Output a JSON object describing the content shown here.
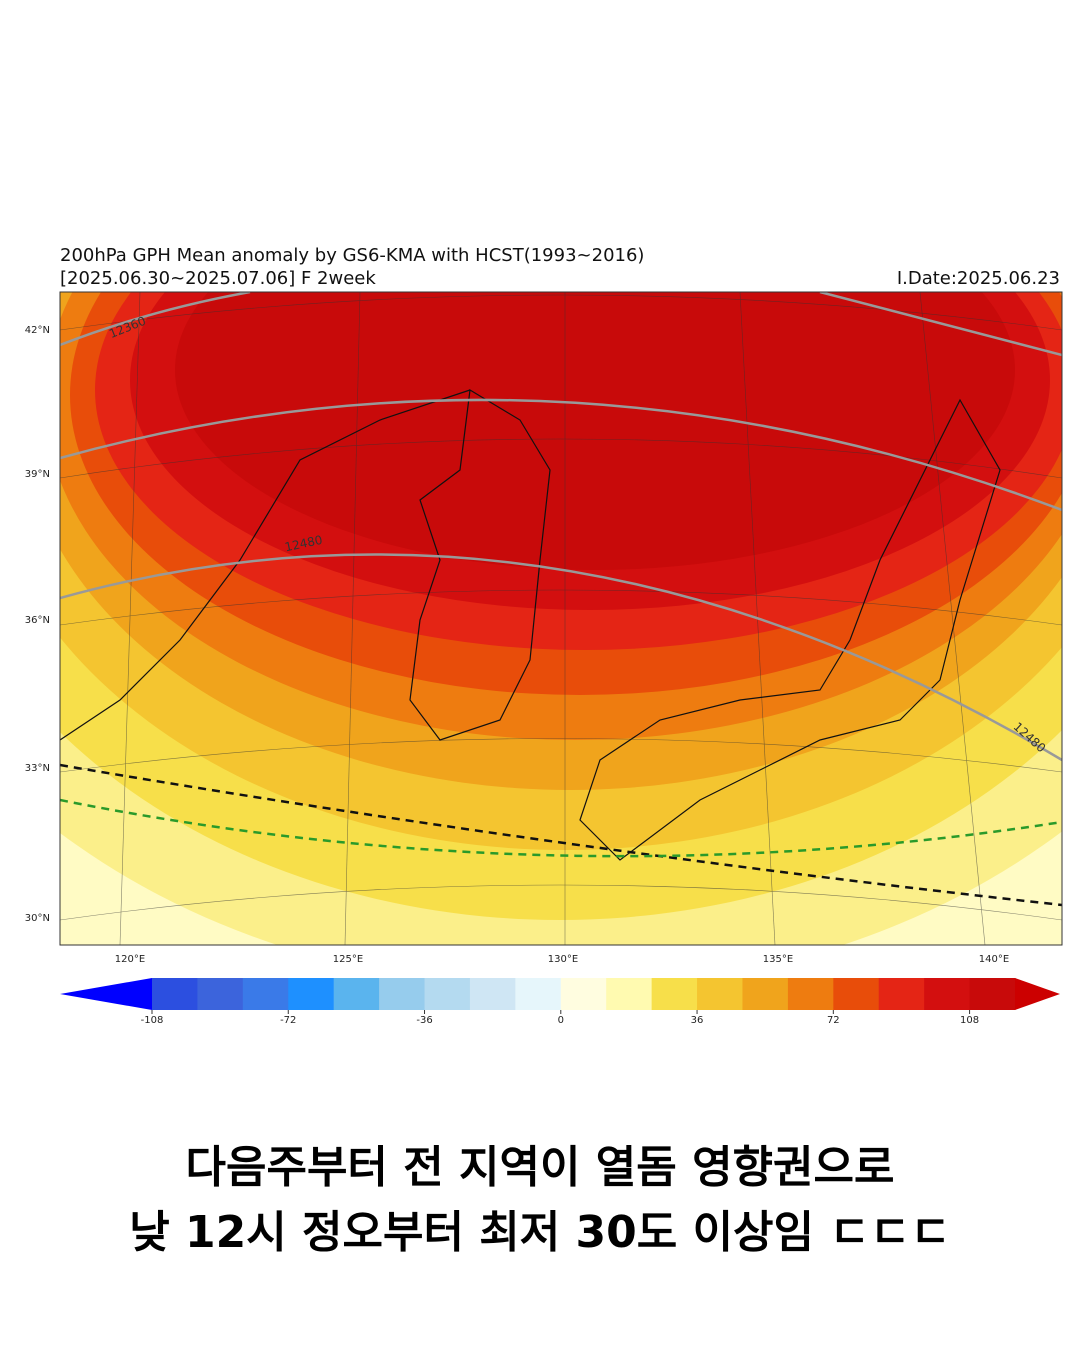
{
  "map": {
    "title": "200hPa GPH Mean anomaly by GS6-KMA with HCST(1993~2016)",
    "period": "[2025.06.30~2025.07.06] F 2week",
    "init_date": "I.Date:2025.06.23",
    "lat_labels": [
      "42°N",
      "39°N",
      "36°N",
      "33°N",
      "30°N"
    ],
    "lon_labels": [
      "120°E",
      "125°E",
      "130°E",
      "135°E",
      "140°E"
    ],
    "contour_labels": [
      "12360",
      "12480",
      "12480"
    ]
  },
  "colorbar": {
    "lim": [
      -108,
      120
    ],
    "ticks": [
      -108,
      -72,
      -36,
      0,
      36,
      72,
      108
    ],
    "under_color": "#0000ff",
    "over_color": "#cc0000",
    "colors": [
      "#2c4fe0",
      "#3c64dc",
      "#3a7ae8",
      "#1e90ff",
      "#5ab4ee",
      "#96cced",
      "#b4daf0",
      "#cfe6f4",
      "#e6f6fb",
      "#fffde0",
      "#fffab0",
      "#f7df4a",
      "#f4c530",
      "#f0a41c",
      "#ee7c10",
      "#e84d0a",
      "#e42515",
      "#d30f0f",
      "#c80a0a"
    ]
  },
  "caption": [
    "다음주부터 전 지역이 열돔 영향권으로",
    "낮 12시 정오부터 최저 30도 이상임 ㄷㄷㄷ"
  ]
}
